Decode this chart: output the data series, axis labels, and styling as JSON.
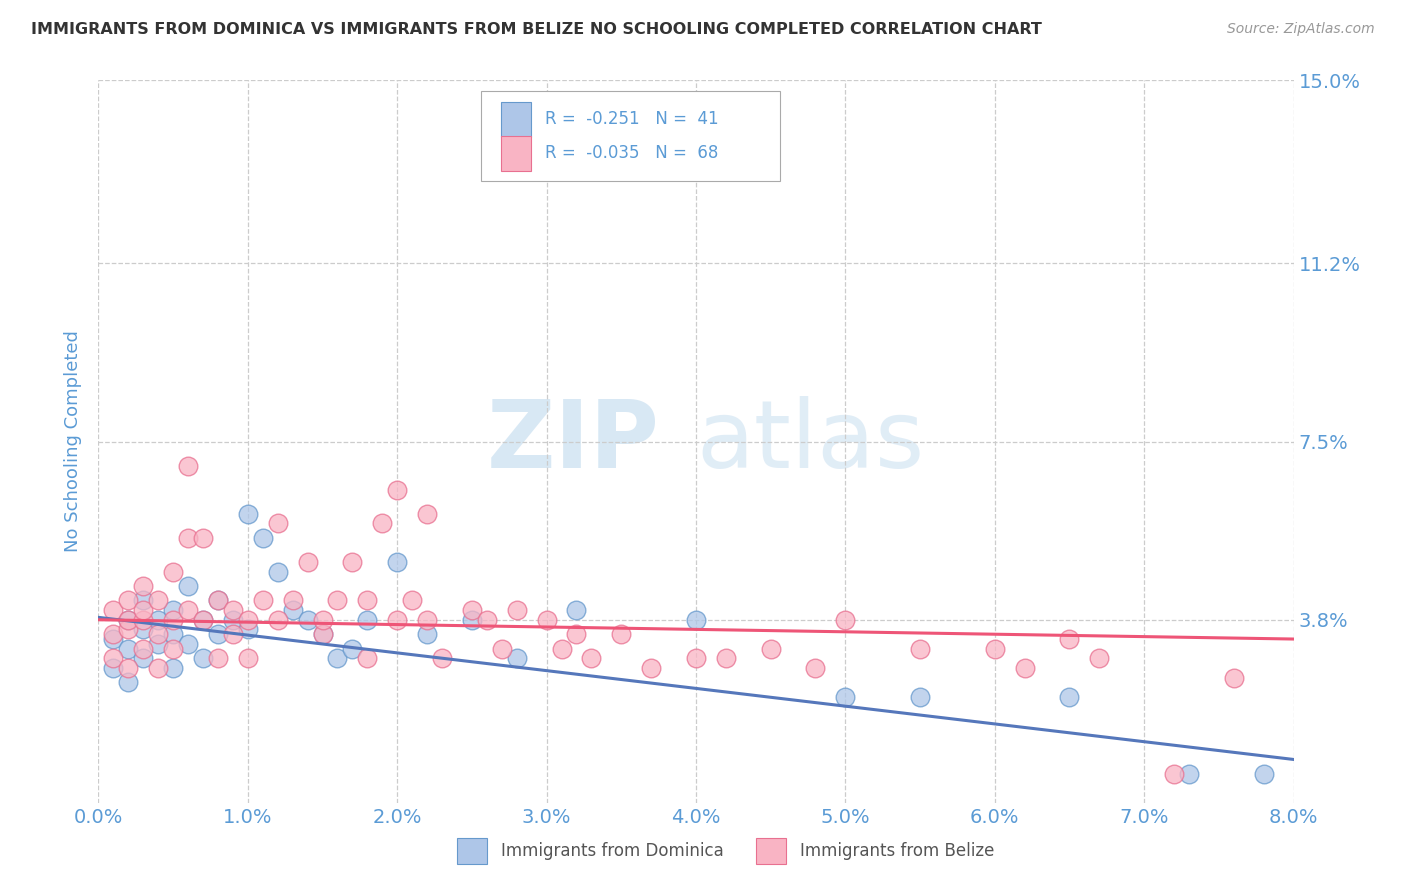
{
  "title": "IMMIGRANTS FROM DOMINICA VS IMMIGRANTS FROM BELIZE NO SCHOOLING COMPLETED CORRELATION CHART",
  "source": "Source: ZipAtlas.com",
  "ylabel": "No Schooling Completed",
  "xlim": [
    0.0,
    0.08
  ],
  "ylim": [
    0.0,
    0.15
  ],
  "yticks": [
    0.038,
    0.075,
    0.112,
    0.15
  ],
  "ytick_labels": [
    "3.8%",
    "7.5%",
    "11.2%",
    "15.0%"
  ],
  "xticks": [
    0.0,
    0.01,
    0.02,
    0.03,
    0.04,
    0.05,
    0.06,
    0.07,
    0.08
  ],
  "xtick_labels": [
    "0.0%",
    "1.0%",
    "2.0%",
    "3.0%",
    "4.0%",
    "5.0%",
    "6.0%",
    "7.0%",
    "8.0%"
  ],
  "dominica_color": "#aec6e8",
  "belize_color": "#f9b4c4",
  "dominica_edge_color": "#6699cc",
  "belize_edge_color": "#e87090",
  "dominica_line_color": "#5577bb",
  "belize_line_color": "#ee5577",
  "dominica_R": -0.251,
  "dominica_N": 41,
  "belize_R": -0.035,
  "belize_N": 68,
  "watermark_zip": "ZIP",
  "watermark_atlas": "atlas",
  "title_color": "#333333",
  "axis_label_color": "#5b9bd5",
  "tick_label_color": "#5b9bd5",
  "grid_color": "#cccccc",
  "dominica_x": [
    0.001,
    0.001,
    0.002,
    0.002,
    0.002,
    0.003,
    0.003,
    0.003,
    0.004,
    0.004,
    0.005,
    0.005,
    0.005,
    0.006,
    0.006,
    0.007,
    0.007,
    0.008,
    0.008,
    0.009,
    0.01,
    0.01,
    0.011,
    0.012,
    0.013,
    0.014,
    0.015,
    0.016,
    0.017,
    0.018,
    0.02,
    0.022,
    0.025,
    0.028,
    0.032,
    0.04,
    0.05,
    0.055,
    0.065,
    0.073,
    0.078
  ],
  "dominica_y": [
    0.034,
    0.028,
    0.038,
    0.032,
    0.025,
    0.042,
    0.036,
    0.03,
    0.038,
    0.033,
    0.04,
    0.035,
    0.028,
    0.045,
    0.033,
    0.038,
    0.03,
    0.042,
    0.035,
    0.038,
    0.06,
    0.036,
    0.055,
    0.048,
    0.04,
    0.038,
    0.035,
    0.03,
    0.032,
    0.038,
    0.05,
    0.035,
    0.038,
    0.03,
    0.04,
    0.038,
    0.022,
    0.022,
    0.022,
    0.006,
    0.006
  ],
  "belize_x": [
    0.001,
    0.001,
    0.001,
    0.002,
    0.002,
    0.002,
    0.002,
    0.003,
    0.003,
    0.003,
    0.003,
    0.004,
    0.004,
    0.004,
    0.005,
    0.005,
    0.005,
    0.006,
    0.006,
    0.006,
    0.007,
    0.007,
    0.008,
    0.008,
    0.009,
    0.009,
    0.01,
    0.01,
    0.011,
    0.012,
    0.012,
    0.013,
    0.014,
    0.015,
    0.015,
    0.016,
    0.017,
    0.018,
    0.018,
    0.019,
    0.02,
    0.02,
    0.021,
    0.022,
    0.022,
    0.023,
    0.025,
    0.026,
    0.027,
    0.028,
    0.03,
    0.031,
    0.032,
    0.033,
    0.035,
    0.037,
    0.04,
    0.042,
    0.045,
    0.048,
    0.05,
    0.055,
    0.06,
    0.062,
    0.065,
    0.067,
    0.072,
    0.076
  ],
  "belize_y": [
    0.035,
    0.04,
    0.03,
    0.042,
    0.036,
    0.028,
    0.038,
    0.045,
    0.038,
    0.032,
    0.04,
    0.035,
    0.042,
    0.028,
    0.038,
    0.032,
    0.048,
    0.055,
    0.04,
    0.07,
    0.055,
    0.038,
    0.042,
    0.03,
    0.04,
    0.035,
    0.038,
    0.03,
    0.042,
    0.038,
    0.058,
    0.042,
    0.05,
    0.035,
    0.038,
    0.042,
    0.05,
    0.042,
    0.03,
    0.058,
    0.038,
    0.065,
    0.042,
    0.06,
    0.038,
    0.03,
    0.04,
    0.038,
    0.032,
    0.04,
    0.038,
    0.032,
    0.035,
    0.03,
    0.035,
    0.028,
    0.03,
    0.03,
    0.032,
    0.028,
    0.038,
    0.032,
    0.032,
    0.028,
    0.034,
    0.03,
    0.006,
    0.026
  ],
  "trend_dom_x0": 0.0,
  "trend_dom_y0": 0.0385,
  "trend_dom_x1": 0.08,
  "trend_dom_y1": 0.009,
  "trend_bel_x0": 0.0,
  "trend_bel_y0": 0.038,
  "trend_bel_x1": 0.08,
  "trend_bel_y1": 0.034
}
